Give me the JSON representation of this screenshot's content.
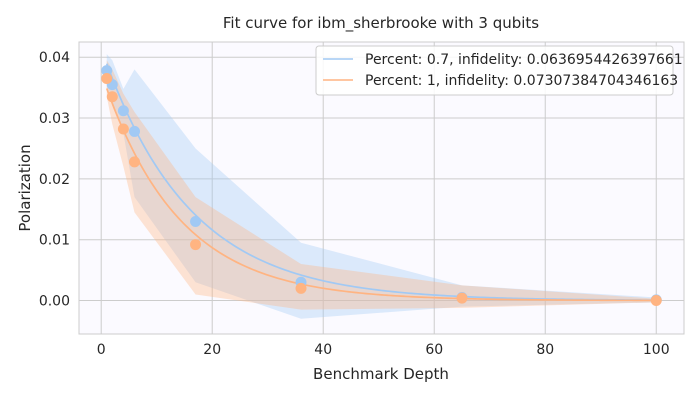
{
  "chart_data": {
    "type": "scatter",
    "title": "Fit curve for ibm_sherbrooke with 3 qubits",
    "xlabel": "Benchmark Depth",
    "ylabel": "Polarization",
    "xlim": [
      -4,
      105
    ],
    "ylim": [
      -0.0055,
      0.0425
    ],
    "xticks": [
      0,
      20,
      40,
      60,
      80,
      100
    ],
    "yticks": [
      0.0,
      0.01,
      0.02,
      0.03,
      0.04
    ],
    "ytick_labels": [
      "0.00",
      "0.01",
      "0.02",
      "0.03",
      "0.04"
    ],
    "grid": true,
    "legend_position": "top-right",
    "series": [
      {
        "name": "Percent: 0.7, infidelity: 0.0636954426397661",
        "color": "#a1c9f4",
        "fit_amplitude": 0.0415,
        "fit_rate": 0.0636954426397661,
        "points": [
          {
            "x": 1,
            "y": 0.0378,
            "err_low": 0.035,
            "err_high": 0.0405
          },
          {
            "x": 2,
            "y": 0.0355,
            "err_low": 0.032,
            "err_high": 0.0395
          },
          {
            "x": 4,
            "y": 0.0312,
            "err_low": 0.0275,
            "err_high": 0.0348
          },
          {
            "x": 6,
            "y": 0.0278,
            "err_low": 0.017,
            "err_high": 0.038
          },
          {
            "x": 17,
            "y": 0.013,
            "err_low": 0.003,
            "err_high": 0.025
          },
          {
            "x": 36,
            "y": 0.003,
            "err_low": -0.003,
            "err_high": 0.0095
          },
          {
            "x": 65,
            "y": 0.0005,
            "err_low": -0.001,
            "err_high": 0.0025
          },
          {
            "x": 100,
            "y": 0.0001,
            "err_low": -0.0003,
            "err_high": 0.0005
          }
        ]
      },
      {
        "name": "Percent: 1, infidelity: 0.07307384704346163",
        "color": "#ffb482",
        "fit_amplitude": 0.0375,
        "fit_rate": 0.07307384704346163,
        "points": [
          {
            "x": 1,
            "y": 0.0365,
            "err_low": 0.0335,
            "err_high": 0.0395
          },
          {
            "x": 2,
            "y": 0.0335,
            "err_low": 0.029,
            "err_high": 0.038
          },
          {
            "x": 4,
            "y": 0.0282,
            "err_low": 0.022,
            "err_high": 0.034
          },
          {
            "x": 6,
            "y": 0.0228,
            "err_low": 0.0145,
            "err_high": 0.031
          },
          {
            "x": 17,
            "y": 0.0092,
            "err_low": 0.001,
            "err_high": 0.017
          },
          {
            "x": 36,
            "y": 0.002,
            "err_low": -0.0015,
            "err_high": 0.006
          },
          {
            "x": 65,
            "y": 0.0004,
            "err_low": -0.0012,
            "err_high": 0.0025
          },
          {
            "x": 100,
            "y": 0.0,
            "err_low": -0.0003,
            "err_high": 0.0003
          }
        ]
      }
    ]
  }
}
